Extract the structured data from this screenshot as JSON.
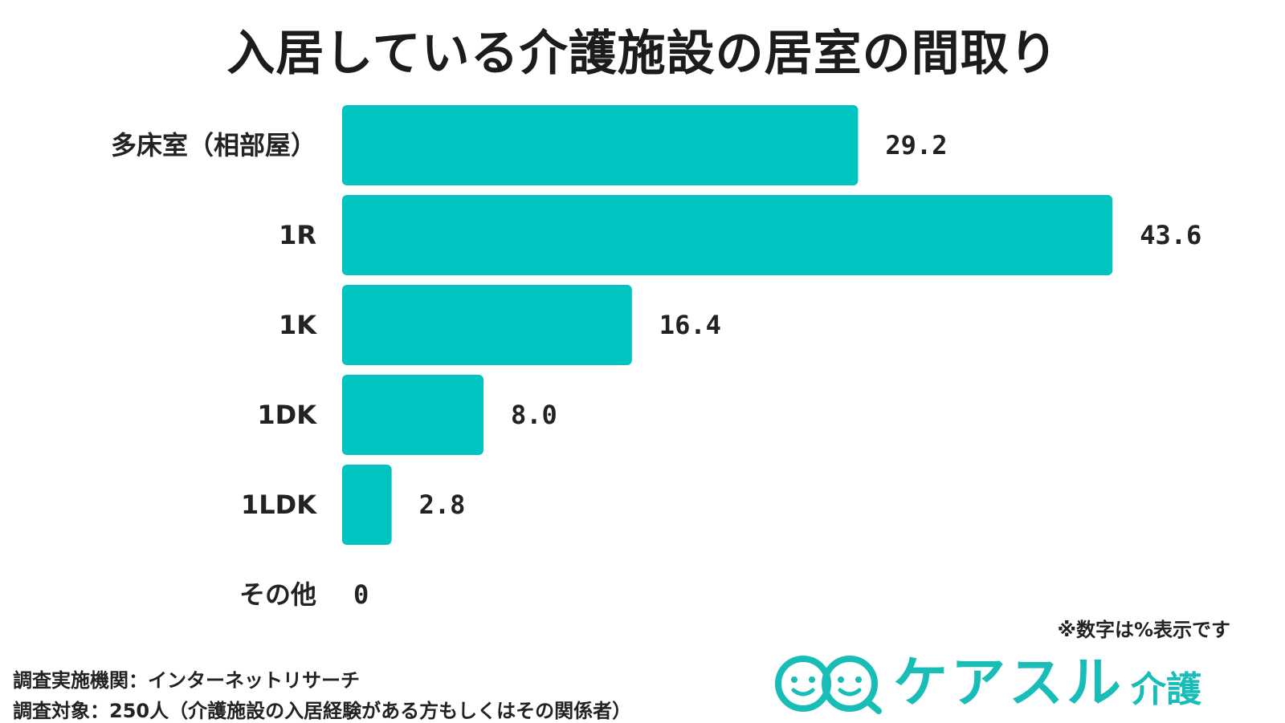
{
  "title": "入居している介護施設の居室の間取り",
  "chart_data": {
    "type": "bar",
    "orientation": "horizontal",
    "title": "入居している介護施設の居室の間取り",
    "categories": [
      "多床室（相部屋）",
      "1R",
      "1K",
      "1DK",
      "1LDK",
      "その他"
    ],
    "values": [
      29.2,
      43.6,
      16.4,
      8.0,
      2.8,
      0
    ],
    "value_labels": [
      "29.2",
      "43.6",
      "16.4",
      "8.0",
      "2.8",
      "0"
    ],
    "unit": "%",
    "bar_color": "#00c4bf",
    "grid": false,
    "legend": "none"
  },
  "notes": {
    "unit_note": "※数字は%表示です",
    "survey_org": "調査実施機関：インターネットリサーチ",
    "survey_target": "調査対象：250人（介護施設の入居経験がある方もしくはその関係者）"
  },
  "logo": {
    "name": "ケアスル",
    "sub": "介護",
    "color": "#18bdb7",
    "icon": "smiley-faces-logo-icon"
  }
}
